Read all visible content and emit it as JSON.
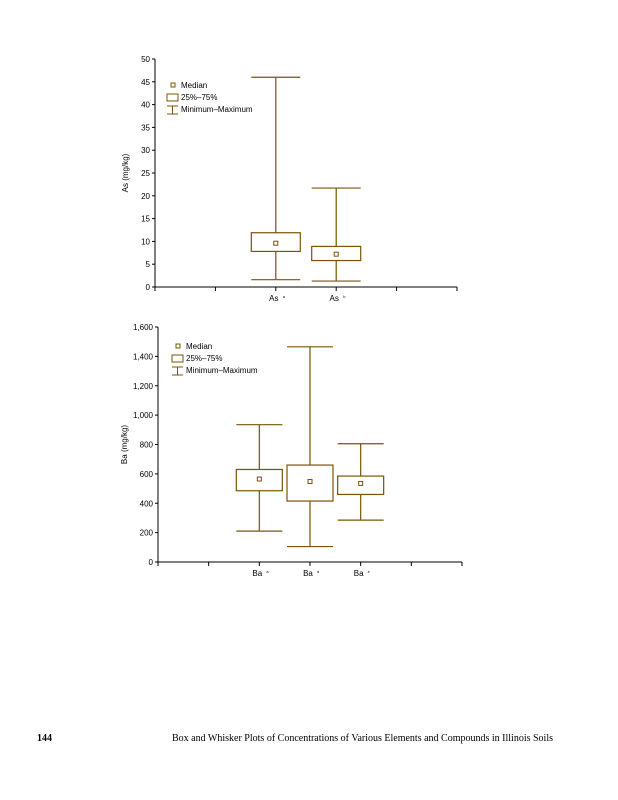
{
  "color": "#7a5400",
  "chart_data": [
    {
      "type": "box",
      "ylabel": "As  (mg/kg)",
      "ylim": [
        0,
        50
      ],
      "yticks": [
        0,
        5,
        10,
        15,
        20,
        25,
        30,
        35,
        40,
        45,
        50
      ],
      "ytick_labels": [
        "0",
        "5",
        "10",
        "15",
        "20",
        "25",
        "30",
        "35",
        "40",
        "45",
        "50"
      ],
      "slots": 5,
      "legend": {
        "position": "top-left",
        "median": "Median",
        "box": "25%–75%",
        "whisker": "Minimum–Maximum"
      },
      "categories": [
        {
          "label": "As",
          "sup": "a",
          "slot": 2,
          "min": 1.6,
          "q1": 7.8,
          "median": 9.6,
          "q3": 11.9,
          "max": 46.0
        },
        {
          "label": "As",
          "sup": "b",
          "slot": 3,
          "min": 1.3,
          "q1": 5.8,
          "median": 7.2,
          "q3": 8.9,
          "max": 21.7
        }
      ]
    },
    {
      "type": "box",
      "ylabel": "Ba  (mg/kg)",
      "ylim": [
        0,
        1600
      ],
      "yticks": [
        0,
        200,
        400,
        600,
        800,
        1000,
        1200,
        1400,
        1600
      ],
      "ytick_labels": [
        "0",
        "200",
        "400",
        "600",
        "800",
        "1,000",
        "1,200",
        "1,400",
        "1,600"
      ],
      "slots": 6,
      "legend": {
        "position": "top-left",
        "median": "Median",
        "box": "25%–75%",
        "whisker": "Minimum–Maximum"
      },
      "categories": [
        {
          "label": "Ba",
          "sup": "a",
          "slot": 2,
          "min": 210,
          "q1": 485,
          "median": 565,
          "q3": 630,
          "max": 935
        },
        {
          "label": "Ba",
          "sup": "d",
          "slot": 3,
          "min": 105,
          "q1": 415,
          "median": 548,
          "q3": 660,
          "max": 1465
        },
        {
          "label": "Ba",
          "sup": "e",
          "slot": 4,
          "min": 285,
          "q1": 460,
          "median": 535,
          "q3": 585,
          "max": 805
        }
      ]
    }
  ],
  "footer": {
    "page_number": "144",
    "caption": "Box and Whisker Plots of Concentrations of Various Elements and Compounds in Illinois Soils"
  }
}
